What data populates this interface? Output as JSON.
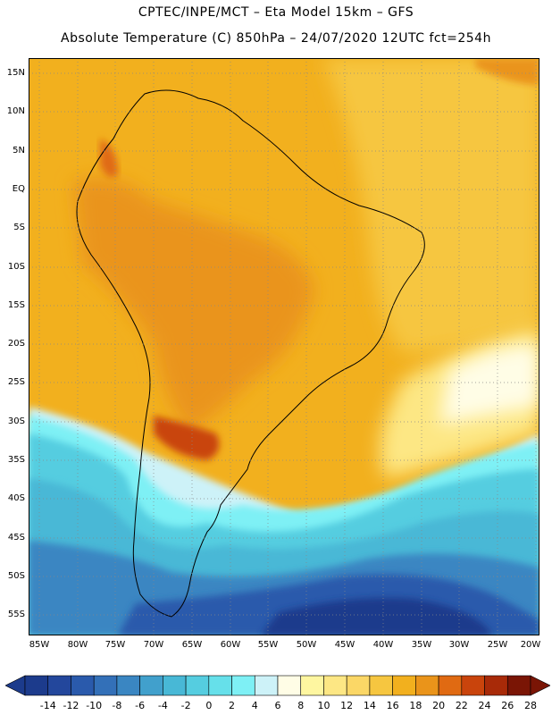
{
  "header": {
    "line1": "CPTEC/INPE/MCT –  Eta Model 15km – GFS",
    "line2": "Absolute Temperature (C) 850hPa – 24/07/2020 12UTC fct=254h"
  },
  "map": {
    "region": "South America",
    "lat_labels": [
      "15N",
      "10N",
      "5N",
      "EQ",
      "5S",
      "10S",
      "15S",
      "20S",
      "25S",
      "30S",
      "35S",
      "40S",
      "45S",
      "50S",
      "55S"
    ],
    "lon_labels": [
      "85W",
      "80W",
      "75W",
      "70W",
      "65W",
      "60W",
      "55W",
      "50W",
      "45W",
      "40W",
      "35W",
      "30W",
      "25W",
      "20W"
    ],
    "lat_range": [
      -58,
      16
    ],
    "lon_range": [
      -86,
      -20
    ],
    "gridlines": "dotted"
  },
  "colorbar": {
    "labels": [
      "-14",
      "-12",
      "-10",
      "-8",
      "-6",
      "-4",
      "-2",
      "0",
      "2",
      "4",
      "6",
      "8",
      "10",
      "12",
      "14",
      "16",
      "18",
      "20",
      "22",
      "24",
      "26",
      "28"
    ],
    "colors": [
      "#1c3b8c",
      "#23479c",
      "#2a5aac",
      "#3370b8",
      "#3a86c2",
      "#41a0cc",
      "#48b8d6",
      "#55cde0",
      "#66e0ea",
      "#7ef0f5",
      "#cdf2f8",
      "#fffde6",
      "#fef6a0",
      "#fde784",
      "#fbd766",
      "#f6c640",
      "#f2b01e",
      "#ea941a",
      "#e06a12",
      "#c9440c",
      "#a82a08",
      "#7a1505"
    ]
  }
}
